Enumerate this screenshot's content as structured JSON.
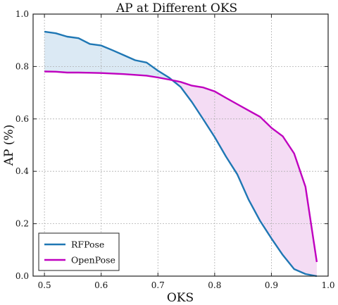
{
  "chart_data": {
    "type": "line",
    "title": "AP at Different OKS",
    "xlabel": "OKS",
    "ylabel": "AP (%)",
    "xlim": [
      0.48,
      1.0
    ],
    "ylim": [
      0.0,
      1.0
    ],
    "x_ticks": [
      "0.5",
      "0.6",
      "0.7",
      "0.8",
      "0.9",
      "1.0"
    ],
    "y_ticks": [
      "0.0",
      "0.2",
      "0.4",
      "0.6",
      "0.8",
      "1.0"
    ],
    "grid": true,
    "legend_position": "bottom-left",
    "shading_between_series": true,
    "series": [
      {
        "name": "RFPose",
        "color": "#1f77b4",
        "fill_color": "#dbe9f4",
        "x": [
          0.5,
          0.52,
          0.54,
          0.56,
          0.58,
          0.6,
          0.62,
          0.64,
          0.66,
          0.68,
          0.7,
          0.72,
          0.74,
          0.76,
          0.78,
          0.8,
          0.82,
          0.84,
          0.86,
          0.88,
          0.9,
          0.92,
          0.94,
          0.96,
          0.98
        ],
        "values": [
          0.933,
          0.927,
          0.914,
          0.908,
          0.886,
          0.88,
          0.862,
          0.843,
          0.824,
          0.815,
          0.784,
          0.757,
          0.722,
          0.664,
          0.598,
          0.531,
          0.456,
          0.388,
          0.291,
          0.211,
          0.144,
          0.081,
          0.027,
          0.008,
          0.0
        ]
      },
      {
        "name": "OpenPose",
        "color": "#bf00bf",
        "fill_color": "#f4dcf4",
        "x": [
          0.5,
          0.52,
          0.54,
          0.56,
          0.58,
          0.6,
          0.62,
          0.64,
          0.66,
          0.68,
          0.7,
          0.72,
          0.74,
          0.76,
          0.78,
          0.8,
          0.82,
          0.84,
          0.86,
          0.88,
          0.9,
          0.92,
          0.94,
          0.96,
          0.98
        ],
        "values": [
          0.781,
          0.78,
          0.777,
          0.777,
          0.776,
          0.775,
          0.773,
          0.771,
          0.768,
          0.765,
          0.758,
          0.75,
          0.741,
          0.727,
          0.72,
          0.705,
          0.68,
          0.656,
          0.632,
          0.608,
          0.566,
          0.534,
          0.468,
          0.341,
          0.054
        ]
      }
    ]
  }
}
